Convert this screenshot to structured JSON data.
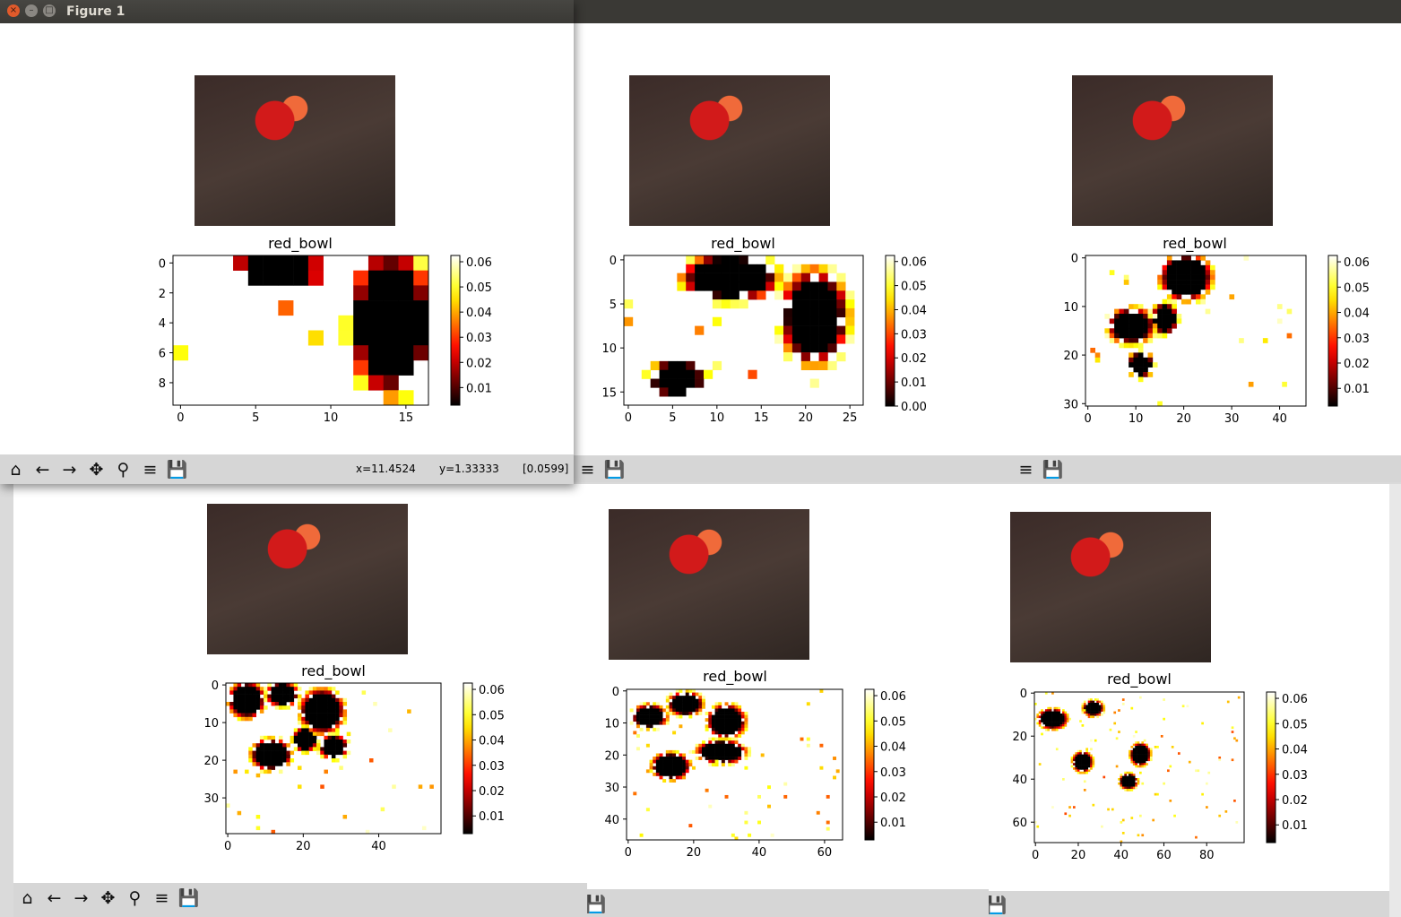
{
  "window": {
    "title": "Figure 1",
    "close_glyph": "×",
    "minimize_glyph": "–",
    "maximize_glyph": "□"
  },
  "toolbar": {
    "icons": [
      "home-icon",
      "back-arrow-icon",
      "forward-arrow-icon",
      "pan-icon",
      "zoom-icon",
      "configure-subplots-icon",
      "save-icon"
    ],
    "glyphs": {
      "home": "⌂",
      "back": "←",
      "forward": "→",
      "pan": "✥",
      "zoom": "⚲",
      "configure": "≡",
      "save": "💾"
    },
    "status_x": "x=11.4524",
    "status_y": "y=1.33333",
    "status_value": "[0.0599]"
  },
  "colors": {
    "titlebar": "#3a3935",
    "toolbar": "#d6d6d6",
    "close_button": "#e05a2b",
    "inactive_button": "#8a8782"
  },
  "chart_data": [
    {
      "type": "heatmap",
      "title": "red_bowl",
      "colormap": "hot",
      "xticks": [
        "0",
        "5",
        "10",
        "15"
      ],
      "yticks": [
        "0",
        "2",
        "4",
        "6",
        "8"
      ],
      "colorbar_ticks": [
        "0.06",
        "0.05",
        "0.04",
        "0.03",
        "0.02",
        "0.01"
      ],
      "grid_shape": [
        10,
        17
      ],
      "hot_regions": [
        [
          0,
          12,
          8,
          16
        ],
        [
          0,
          4,
          1,
          9
        ]
      ]
    },
    {
      "type": "heatmap",
      "title": "red_bowl",
      "colormap": "hot",
      "xticks": [
        "0",
        "5",
        "10",
        "15",
        "20",
        "25"
      ],
      "yticks": [
        "0",
        "5",
        "10",
        "15"
      ],
      "colorbar_ticks": [
        "0.06",
        "0.05",
        "0.04",
        "0.03",
        "0.02",
        "0.01",
        "0.00"
      ],
      "grid_shape": [
        17,
        27
      ],
      "hot_regions": [
        [
          0,
          7,
          4,
          16
        ],
        [
          2,
          18,
          11,
          24
        ],
        [
          12,
          3,
          15,
          8
        ]
      ]
    },
    {
      "type": "heatmap",
      "title": "red_bowl",
      "colormap": "hot",
      "xticks": [
        "0",
        "10",
        "20",
        "30",
        "40"
      ],
      "yticks": [
        "0",
        "10",
        "20",
        "30"
      ],
      "colorbar_ticks": [
        "0.06",
        "0.05",
        "0.04",
        "0.03",
        "0.02",
        "0.01"
      ],
      "grid_shape": [
        31,
        46
      ],
      "hot_regions": [
        [
          0,
          16,
          8,
          25
        ],
        [
          11,
          5,
          17,
          13
        ],
        [
          10,
          14,
          15,
          18
        ],
        [
          20,
          9,
          24,
          13
        ]
      ]
    },
    {
      "type": "heatmap",
      "title": "red_bowl",
      "colormap": "hot",
      "xticks": [
        "0",
        "20",
        "40"
      ],
      "yticks": [
        "0",
        "10",
        "20",
        "30"
      ],
      "colorbar_ticks": [
        "0.06",
        "0.05",
        "0.04",
        "0.03",
        "0.02",
        "0.01"
      ],
      "grid_shape": [
        40,
        57
      ],
      "hot_regions": [
        [
          0,
          1,
          8,
          9
        ],
        [
          0,
          11,
          5,
          18
        ],
        [
          2,
          20,
          12,
          30
        ],
        [
          15,
          7,
          22,
          16
        ],
        [
          12,
          18,
          17,
          23
        ],
        [
          14,
          25,
          19,
          31
        ]
      ]
    },
    {
      "type": "heatmap",
      "title": "red_bowl",
      "colormap": "hot",
      "xticks": [
        "0",
        "20",
        "40",
        "60"
      ],
      "yticks": [
        "0",
        "10",
        "20",
        "30",
        "40"
      ],
      "colorbar_ticks": [
        "0.06",
        "0.05",
        "0.04",
        "0.03",
        "0.02",
        "0.01"
      ],
      "grid_shape": [
        47,
        66
      ],
      "hot_regions": [
        [
          5,
          2,
          11,
          11
        ],
        [
          1,
          13,
          7,
          22
        ],
        [
          5,
          25,
          14,
          35
        ],
        [
          16,
          22,
          22,
          35
        ],
        [
          20,
          8,
          27,
          18
        ]
      ]
    },
    {
      "type": "heatmap",
      "title": "red_bowl",
      "colormap": "hot",
      "xticks": [
        "0",
        "20",
        "40",
        "60",
        "80"
      ],
      "yticks": [
        "0",
        "20",
        "40",
        "60"
      ],
      "colorbar_ticks": [
        "0.06",
        "0.05",
        "0.04",
        "0.03",
        "0.02",
        "0.01"
      ],
      "grid_shape": [
        70,
        98
      ],
      "hot_regions": [
        [
          8,
          2,
          16,
          14
        ],
        [
          4,
          23,
          10,
          31
        ],
        [
          28,
          18,
          36,
          26
        ],
        [
          24,
          45,
          33,
          53
        ],
        [
          38,
          40,
          44,
          47
        ]
      ]
    }
  ]
}
